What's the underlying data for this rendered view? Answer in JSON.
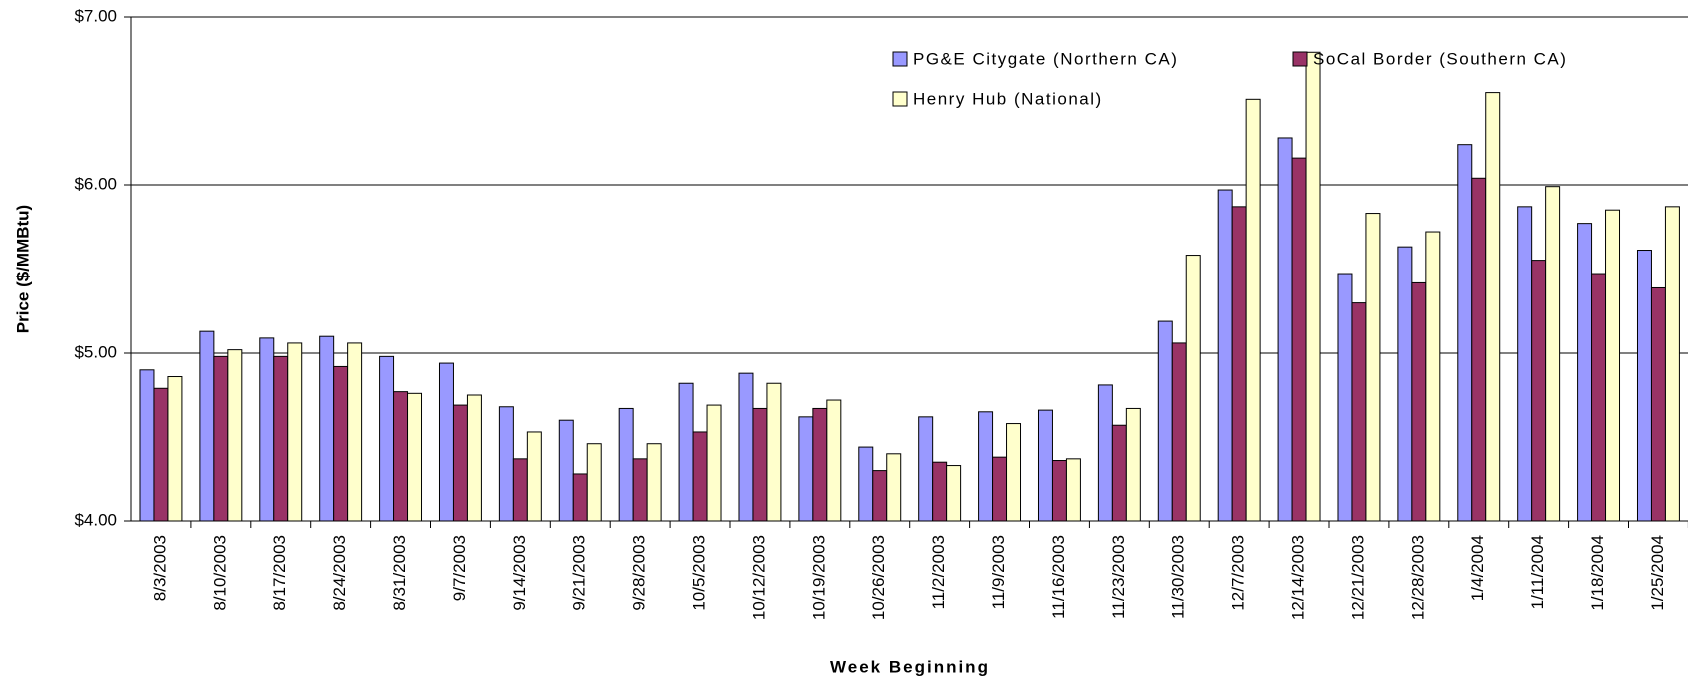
{
  "chart_data": {
    "type": "bar",
    "y_label": "Price ($/MMBtu)",
    "x_label": "Week Beginning",
    "categories": [
      "8/3/2003",
      "8/10/2003",
      "8/17/2003",
      "8/24/2003",
      "8/31/2003",
      "9/7/2003",
      "9/14/2003",
      "9/21/2003",
      "9/28/2003",
      "10/5/2003",
      "10/12/2003",
      "10/19/2003",
      "10/26/2003",
      "11/2/2003",
      "11/9/2003",
      "11/16/2003",
      "11/23/2003",
      "11/30/2003",
      "12/7/2003",
      "12/14/2003",
      "12/21/2003",
      "12/28/2003",
      "1/4/2004",
      "1/11/2004",
      "1/18/2004",
      "1/25/2004"
    ],
    "series": [
      {
        "name": "PG&E Citygate (Northern CA)",
        "color": "#9999ff",
        "values": [
          4.9,
          5.13,
          5.09,
          5.1,
          4.98,
          4.94,
          4.68,
          4.6,
          4.67,
          4.82,
          4.88,
          4.62,
          4.44,
          4.62,
          4.65,
          4.66,
          4.81,
          5.19,
          5.97,
          6.28,
          5.47,
          5.63,
          6.24,
          5.87,
          5.77,
          5.61
        ]
      },
      {
        "name": "SoCal Border (Southern CA)",
        "color": "#993366",
        "values": [
          4.79,
          4.98,
          4.98,
          4.92,
          4.77,
          4.69,
          4.37,
          4.28,
          4.37,
          4.53,
          4.67,
          4.67,
          4.3,
          4.35,
          4.38,
          4.36,
          4.57,
          5.06,
          5.87,
          6.16,
          5.3,
          5.42,
          6.04,
          5.55,
          5.47,
          5.39
        ]
      },
      {
        "name": "Henry Hub (National)",
        "color": "#ffffcc",
        "values": [
          4.86,
          5.02,
          5.06,
          5.06,
          4.76,
          4.75,
          4.53,
          4.46,
          4.46,
          4.69,
          4.82,
          4.72,
          4.4,
          4.33,
          4.58,
          4.37,
          4.67,
          5.58,
          6.51,
          6.79,
          5.83,
          5.72,
          6.55,
          5.99,
          5.85,
          5.87
        ]
      }
    ],
    "ylim": [
      4,
      7
    ],
    "yticks": [
      {
        "value": 4,
        "label": "$4.00"
      },
      {
        "value": 5,
        "label": "$5.00"
      },
      {
        "value": 6,
        "label": "$6.00"
      },
      {
        "value": 7,
        "label": "$7.00"
      }
    ],
    "grid": true,
    "legend": "top-right"
  }
}
